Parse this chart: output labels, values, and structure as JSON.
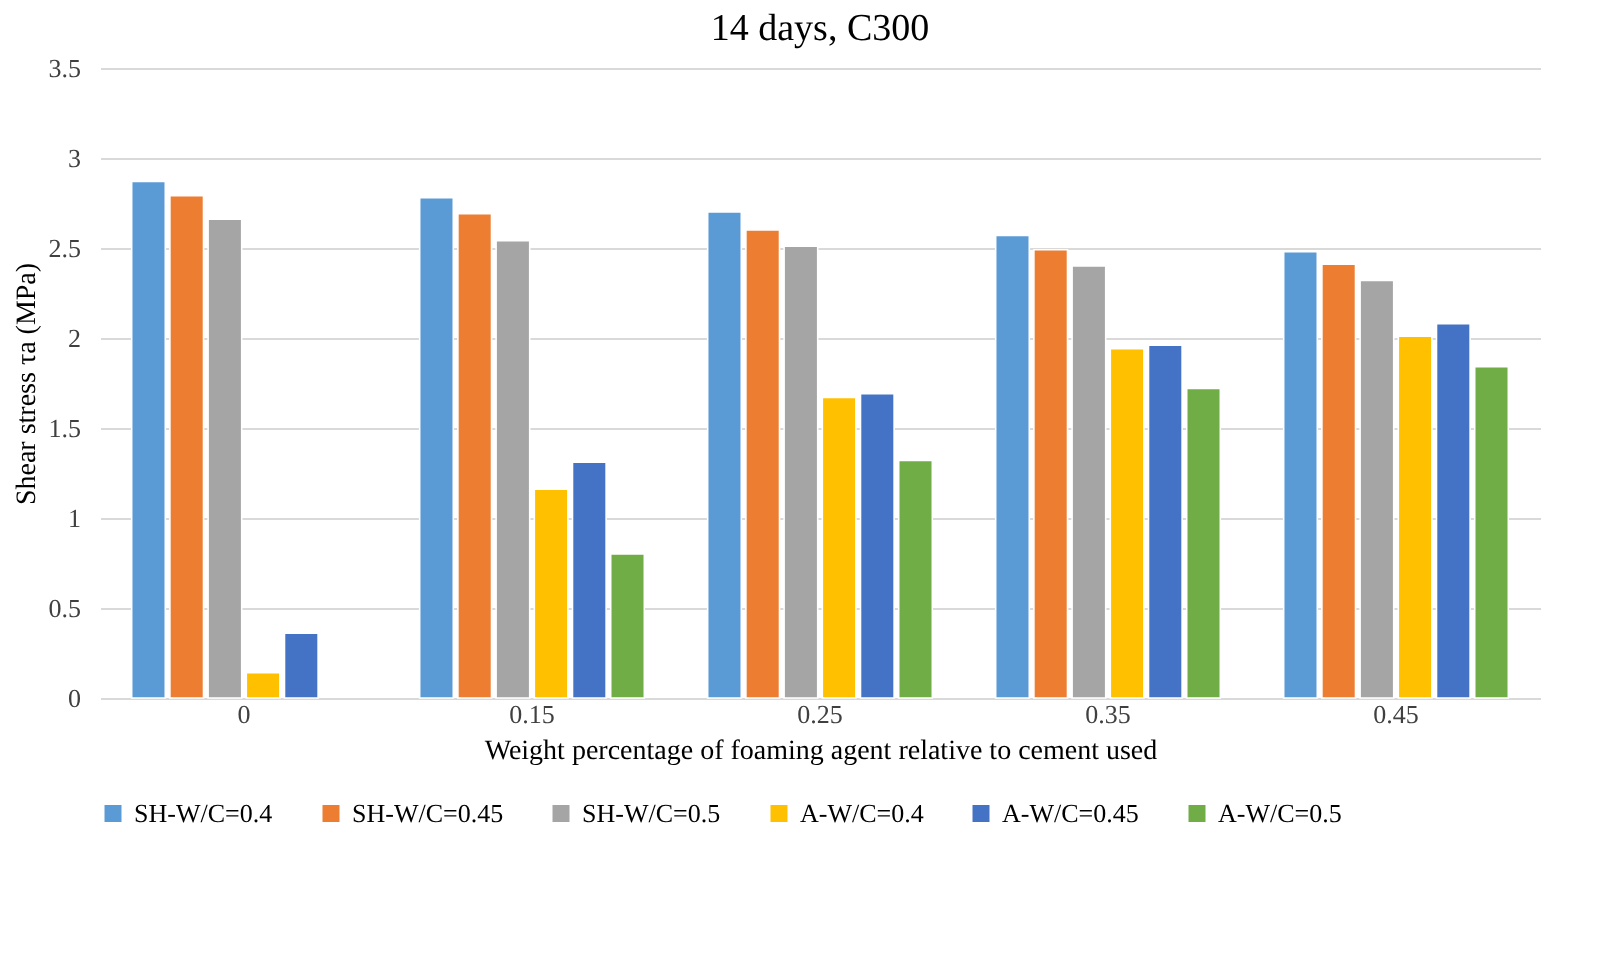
{
  "chart_data": {
    "type": "bar",
    "title": "14 days, C300",
    "xlabel": "Weight percentage of foaming agent relative to cement used",
    "ylabel": "Shear stress τa (MPa)",
    "categories": [
      "0",
      "0.15",
      "0.25",
      "0.35",
      "0.45"
    ],
    "series": [
      {
        "name": "SH-W/C=0.4",
        "color": "#5b9bd5",
        "values": [
          2.87,
          2.78,
          2.7,
          2.57,
          2.48
        ]
      },
      {
        "name": "SH-W/C=0.45",
        "color": "#ed7d31",
        "values": [
          2.79,
          2.69,
          2.6,
          2.49,
          2.41
        ]
      },
      {
        "name": "SH-W/C=0.5",
        "color": "#a5a5a5",
        "values": [
          2.66,
          2.54,
          2.51,
          2.4,
          2.32
        ]
      },
      {
        "name": "A-W/C=0.4",
        "color": "#ffc000",
        "values": [
          0.14,
          1.16,
          1.67,
          1.94,
          2.01
        ]
      },
      {
        "name": "A-W/C=0.45",
        "color": "#4472c4",
        "values": [
          0.36,
          1.31,
          1.69,
          1.96,
          2.08
        ]
      },
      {
        "name": "A-W/C=0.5",
        "color": "#70ad47",
        "values": [
          null,
          0.8,
          1.32,
          1.72,
          1.84
        ]
      }
    ],
    "ylim": [
      0,
      3.5
    ],
    "yticks": [
      0,
      0.5,
      1,
      1.5,
      2,
      2.5,
      3,
      3.5
    ],
    "grid": "y",
    "legend": "bottom"
  }
}
